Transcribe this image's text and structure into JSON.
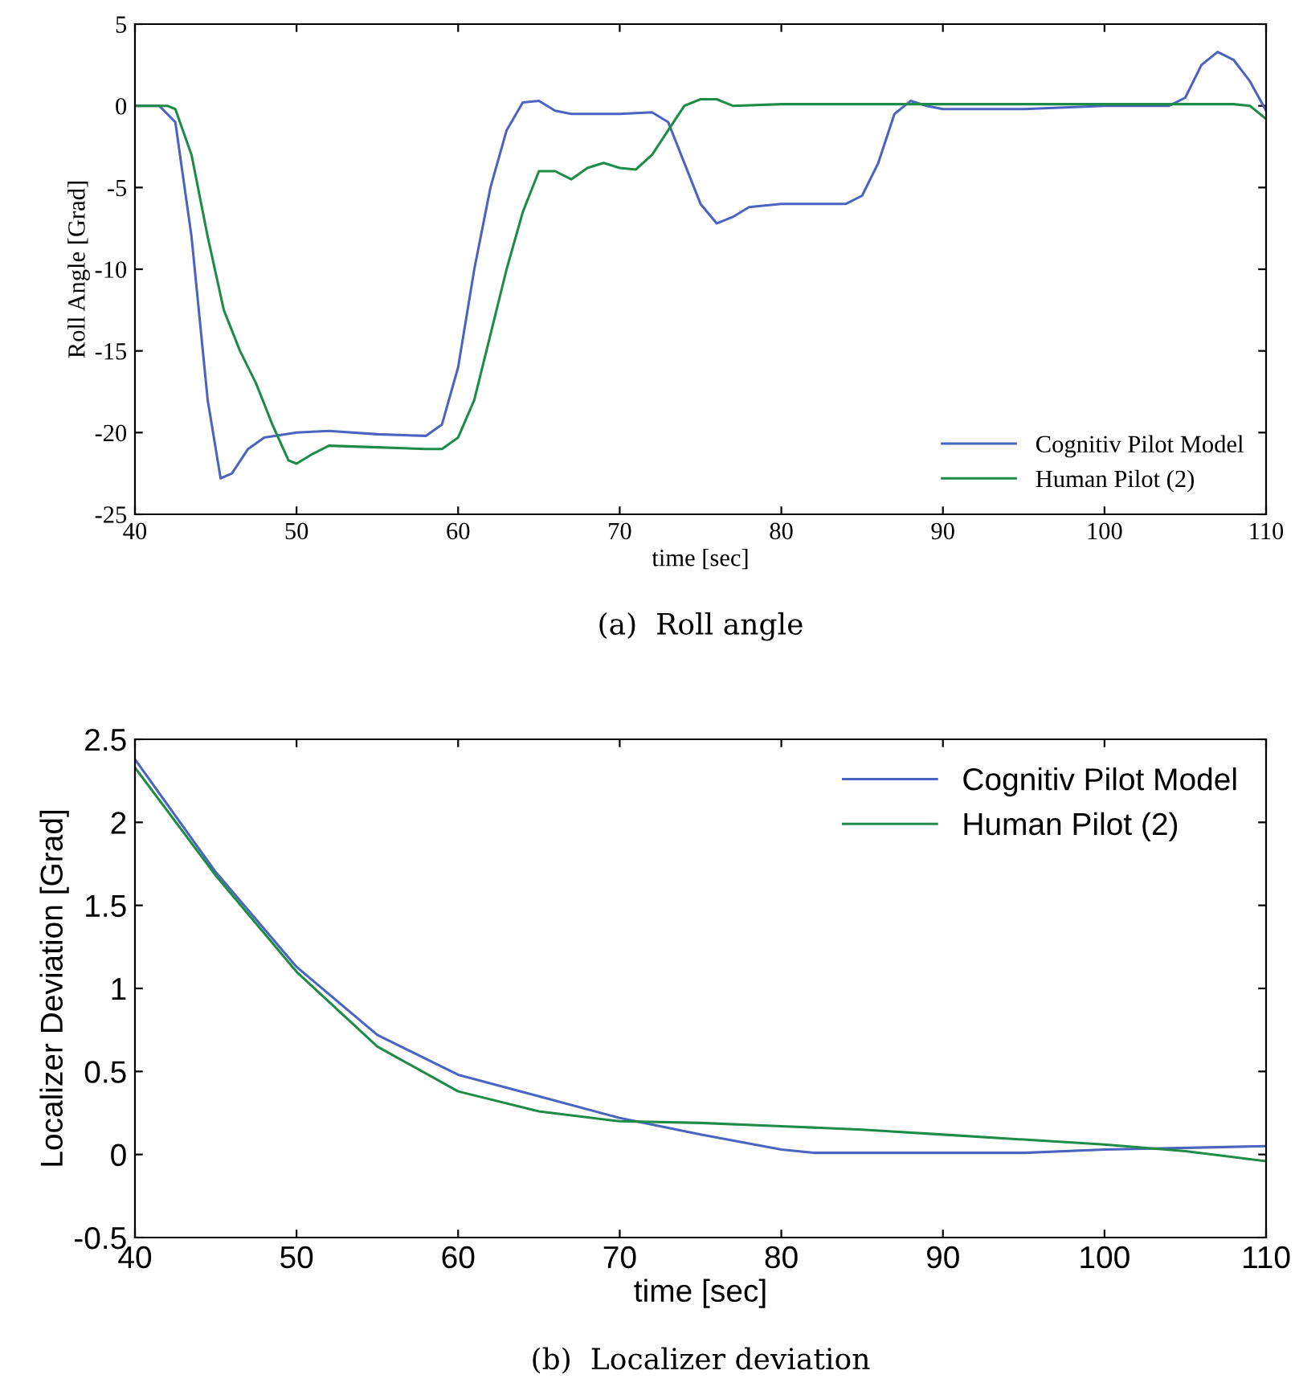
{
  "chart_data": [
    {
      "type": "line",
      "xlabel": "time [sec]",
      "ylabel": "Roll Angle [Grad]",
      "annotations": [
        "(a)  Roll angle"
      ],
      "xlim": [
        40,
        110
      ],
      "ylim": [
        -25,
        5
      ],
      "xticks": [
        40,
        50,
        60,
        70,
        80,
        90,
        100,
        110
      ],
      "yticks": [
        -25,
        -20,
        -15,
        -10,
        -5,
        0,
        5
      ],
      "legend": "bottom right",
      "grid": false,
      "series": [
        {
          "name": "Cognitiv Pilot Model",
          "color": "#4a64c0",
          "x": [
            40,
            41.5,
            42.5,
            43.5,
            44.5,
            45.3,
            46,
            47,
            48,
            50,
            52,
            55,
            58,
            59,
            60,
            61,
            62,
            63,
            64,
            65,
            66,
            67,
            70,
            72,
            73,
            74,
            75,
            76,
            77,
            78,
            80,
            84,
            85,
            86,
            87,
            88,
            89,
            90,
            95,
            100,
            104,
            105,
            106,
            107,
            108,
            109,
            110
          ],
          "values": [
            0,
            0,
            -1,
            -8,
            -18,
            -22.8,
            -22.5,
            -21,
            -20.3,
            -20,
            -19.9,
            -20.1,
            -20.2,
            -19.5,
            -16,
            -10,
            -5,
            -1.5,
            0.2,
            0.3,
            -0.3,
            -0.5,
            -0.5,
            -0.4,
            -1,
            -3.5,
            -6,
            -7.2,
            -6.8,
            -6.2,
            -6,
            -6,
            -5.5,
            -3.5,
            -0.5,
            0.3,
            0,
            -0.2,
            -0.2,
            0,
            0,
            0.5,
            2.5,
            3.3,
            2.8,
            1.5,
            -0.3
          ]
        },
        {
          "name": "Human Pilot (2)",
          "color": "#1e8c46",
          "x": [
            40,
            42,
            42.5,
            43.5,
            44.5,
            45.5,
            46.5,
            47.5,
            48.5,
            49.5,
            50,
            51,
            52,
            55,
            58,
            59,
            60,
            61,
            62,
            63,
            64,
            65,
            66,
            67,
            68,
            69,
            70,
            71,
            72,
            73,
            74,
            75,
            76,
            77,
            80,
            90,
            100,
            108,
            109,
            110
          ],
          "values": [
            0,
            0,
            -0.2,
            -3,
            -8,
            -12.5,
            -15,
            -17,
            -19.5,
            -21.7,
            -21.9,
            -21.3,
            -20.8,
            -20.9,
            -21,
            -21,
            -20.3,
            -18,
            -14,
            -10,
            -6.5,
            -4,
            -4,
            -4.5,
            -3.8,
            -3.5,
            -3.8,
            -3.9,
            -3,
            -1.5,
            0,
            0.4,
            0.4,
            0,
            0.1,
            0.1,
            0.1,
            0.1,
            0,
            -0.8
          ]
        }
      ]
    },
    {
      "type": "line",
      "xlabel": "time [sec]",
      "ylabel": "Localizer Deviation [Grad]",
      "annotations": [
        "(b)  Localizer deviation"
      ],
      "xlim": [
        40,
        110
      ],
      "ylim": [
        -0.5,
        2.5
      ],
      "xticks": [
        40,
        50,
        60,
        70,
        80,
        90,
        100,
        110
      ],
      "yticks": [
        -0.5,
        0,
        0.5,
        1,
        1.5,
        2,
        2.5
      ],
      "legend": "top right",
      "grid": false,
      "series": [
        {
          "name": "Cognitiv Pilot Model",
          "color": "#4a64c0",
          "x": [
            40,
            45,
            50,
            55,
            60,
            65,
            70,
            75,
            80,
            82,
            90,
            95,
            100,
            110
          ],
          "values": [
            2.38,
            1.7,
            1.13,
            0.72,
            0.48,
            0.35,
            0.22,
            0.12,
            0.03,
            0.01,
            0.01,
            0.01,
            0.03,
            0.05
          ]
        },
        {
          "name": "Human Pilot (2)",
          "color": "#1e8c46",
          "x": [
            40,
            45,
            50,
            55,
            60,
            65,
            70,
            75,
            80,
            85,
            90,
            95,
            100,
            105,
            110
          ],
          "values": [
            2.33,
            1.68,
            1.1,
            0.65,
            0.38,
            0.26,
            0.2,
            0.19,
            0.17,
            0.15,
            0.12,
            0.09,
            0.06,
            0.02,
            -0.04
          ]
        }
      ]
    }
  ]
}
